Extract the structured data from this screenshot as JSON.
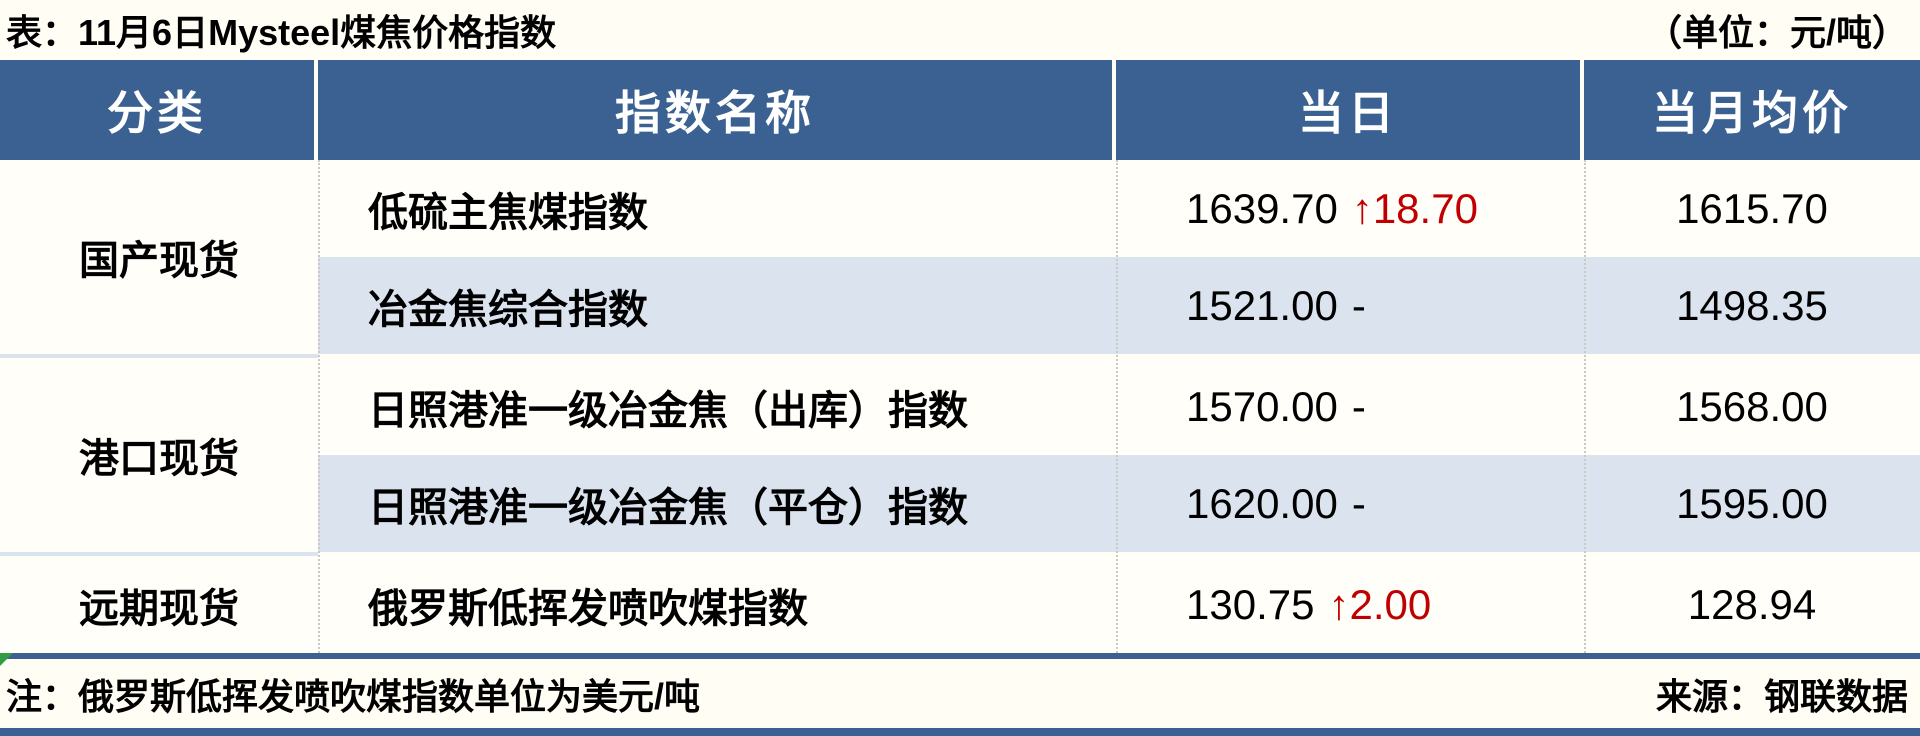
{
  "header": {
    "title": "表：11月6日Mysteel煤焦价格指数",
    "unit_label": "（单位：元/吨）"
  },
  "table": {
    "columns": [
      "分类",
      "指数名称",
      "当日",
      "当月均价"
    ],
    "categories": [
      {
        "label": "国产现货",
        "rowspan": 2
      },
      {
        "label": "港口现货",
        "rowspan": 2
      },
      {
        "label": "远期现货",
        "rowspan": 1
      }
    ],
    "rows": [
      {
        "category": "国产现货",
        "name": "低硫主焦煤指数",
        "value": "1639.70",
        "change": "↑18.70",
        "change_direction": "up",
        "avg": "1615.70"
      },
      {
        "category": "国产现货",
        "name": "冶金焦综合指数",
        "value": "1521.00",
        "change": "-",
        "change_direction": "none",
        "avg": "1498.35"
      },
      {
        "category": "港口现货",
        "name": "日照港准一级冶金焦（出库）指数",
        "value": "1570.00",
        "change": "-",
        "change_direction": "none",
        "avg": "1568.00"
      },
      {
        "category": "港口现货",
        "name": "日照港准一级冶金焦（平仓）指数",
        "value": "1620.00",
        "change": "-",
        "change_direction": "none",
        "avg": "1595.00"
      },
      {
        "category": "远期现货",
        "name": "俄罗斯低挥发喷吹煤指数",
        "value": "130.75",
        "change": "↑2.00",
        "change_direction": "up",
        "avg": "128.94"
      }
    ]
  },
  "footer": {
    "note": "注：俄罗斯低挥发喷吹煤指数单位为美元/吨",
    "source": "来源：钢联数据"
  },
  "colors": {
    "header_bg": "#3a6191",
    "row_alt_bg": "#dbe3ef",
    "page_bg": "#fffdf4",
    "row_bg": "#fffef9",
    "accent_red": "#c00000",
    "divider": "#3a6191",
    "dash_gray": "#c9c9c9",
    "green_artifact": "#2f9e44"
  },
  "chart_data": {
    "type": "table",
    "title": "11月6日Mysteel煤焦价格指数",
    "unit": "元/吨",
    "columns": [
      "分类",
      "指数名称",
      "当日",
      "当月均价"
    ],
    "rows": [
      [
        "国产现货",
        "低硫主焦煤指数",
        "1639.70 ↑18.70",
        "1615.70"
      ],
      [
        "国产现货",
        "冶金焦综合指数",
        "1521.00 -",
        "1498.35"
      ],
      [
        "港口现货",
        "日照港准一级冶金焦（出库）指数",
        "1570.00 -",
        "1568.00"
      ],
      [
        "港口现货",
        "日照港准一级冶金焦（平仓）指数",
        "1620.00 -",
        "1595.00"
      ],
      [
        "远期现货",
        "俄罗斯低挥发喷吹煤指数",
        "130.75 ↑2.00",
        "128.94"
      ]
    ],
    "note": "俄罗斯低挥发喷吹煤指数单位为美元/吨",
    "source": "钢联数据"
  }
}
